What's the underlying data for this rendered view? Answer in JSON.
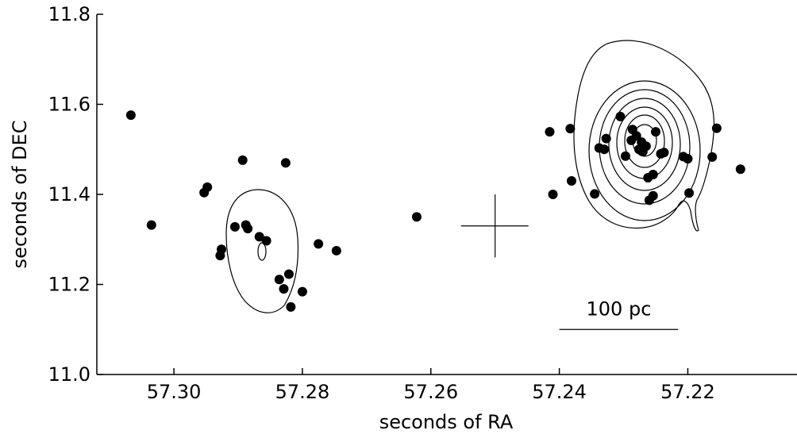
{
  "chart_data": {
    "type": "scatter",
    "xlabel": "seconds of RA",
    "ylabel": "seconds of DEC",
    "xlim": [
      57.312,
      57.203
    ],
    "ylim": [
      11.0,
      11.8
    ],
    "x_reversed": true,
    "xticks": [
      57.3,
      57.28,
      57.26,
      57.24,
      57.22
    ],
    "xtick_labels": [
      "57.30",
      "57.28",
      "57.26",
      "57.24",
      "57.22"
    ],
    "yticks": [
      11.0,
      11.2,
      11.4,
      11.6,
      11.8
    ],
    "ytick_labels": [
      "11.0",
      "11.2",
      "11.4",
      "11.6",
      "11.8"
    ],
    "grid": false,
    "series": [
      {
        "marker": "filled-circle",
        "color": "#000000",
        "points": [
          [
            57.3067,
            11.576
          ],
          [
            57.3035,
            11.332
          ],
          [
            57.2953,
            11.404
          ],
          [
            57.2948,
            11.416
          ],
          [
            57.2928,
            11.264
          ],
          [
            57.2926,
            11.278
          ],
          [
            57.2905,
            11.328
          ],
          [
            57.2893,
            11.476
          ],
          [
            57.2888,
            11.332
          ],
          [
            57.2885,
            11.324
          ],
          [
            57.2867,
            11.306
          ],
          [
            57.2856,
            11.297
          ],
          [
            57.2836,
            11.211
          ],
          [
            57.2826,
            11.47
          ],
          [
            57.2829,
            11.19
          ],
          [
            57.2821,
            11.223
          ],
          [
            57.2818,
            11.15
          ],
          [
            57.28,
            11.184
          ],
          [
            57.2775,
            11.29
          ],
          [
            57.2747,
            11.275
          ],
          [
            57.2622,
            11.35
          ],
          [
            57.2415,
            11.539
          ],
          [
            57.241,
            11.4
          ],
          [
            57.2383,
            11.546
          ],
          [
            57.2381,
            11.43
          ],
          [
            57.2345,
            11.401
          ],
          [
            57.2338,
            11.503
          ],
          [
            57.233,
            11.5
          ],
          [
            57.2327,
            11.524
          ],
          [
            57.2305,
            11.573
          ],
          [
            57.2297,
            11.485
          ],
          [
            57.2288,
            11.52
          ],
          [
            57.2286,
            11.544
          ],
          [
            57.228,
            11.53
          ],
          [
            57.2276,
            11.5
          ],
          [
            57.227,
            11.495
          ],
          [
            57.2272,
            11.516
          ],
          [
            57.2265,
            11.507
          ],
          [
            57.2262,
            11.437
          ],
          [
            57.226,
            11.387
          ],
          [
            57.2254,
            11.444
          ],
          [
            57.2254,
            11.397
          ],
          [
            57.225,
            11.539
          ],
          [
            57.2242,
            11.49
          ],
          [
            57.2237,
            11.493
          ],
          [
            57.2207,
            11.484
          ],
          [
            57.22,
            11.479
          ],
          [
            57.2198,
            11.403
          ],
          [
            57.2162,
            11.483
          ],
          [
            57.2155,
            11.547
          ],
          [
            57.2118,
            11.456
          ]
        ]
      }
    ],
    "annotations": {
      "scale_bar": {
        "label": "100 pc",
        "x": [
          57.24,
          57.2215
        ],
        "y": 11.1
      },
      "cross": {
        "x_range": [
          57.2553,
          57.2448
        ],
        "y_range": [
          11.26,
          11.4
        ],
        "center": [
          57.25,
          11.33
        ]
      }
    },
    "contours": "contour outlines around both source groups; the right group has nested concentric levels"
  }
}
